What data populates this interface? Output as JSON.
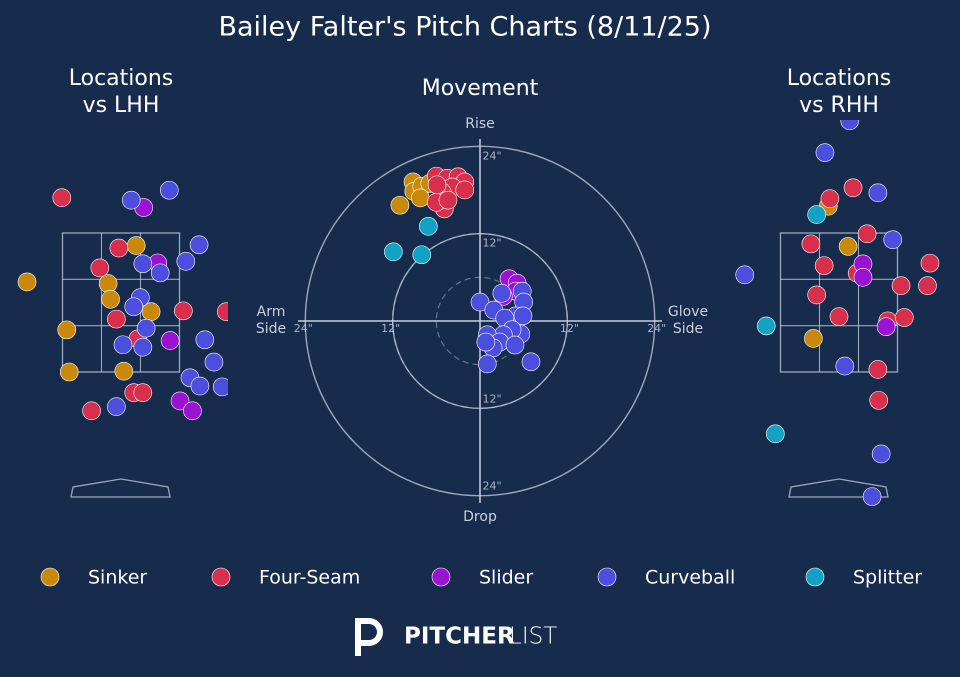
{
  "title": "Bailey Falter's Pitch Charts (8/11/25)",
  "logo": {
    "bold": "PITCHER",
    "light": "LIST"
  },
  "chart_data": [
    {
      "type": "location",
      "title": [
        "Locations",
        "vs LHH"
      ],
      "xlim": [
        -1.3,
        1.3
      ],
      "ylim": [
        0,
        4.6
      ],
      "series": [
        {
          "name": "Sinker",
          "color": "#c98a0c",
          "x": [
            -1.13,
            0.19,
            -0.15,
            -0.12,
            -0.65,
            0.37,
            -0.62,
            0.04
          ],
          "y": [
            2.7,
            3.14,
            2.68,
            2.49,
            2.12,
            2.34,
            1.61,
            1.62
          ]
        },
        {
          "name": "Four-Seam",
          "color": "#d8304c",
          "x": [
            -0.71,
            -0.02,
            -0.25,
            -0.05,
            0.76,
            1.28,
            0.21,
            0.16,
            0.27,
            -0.35
          ],
          "y": [
            3.72,
            3.11,
            2.87,
            2.25,
            2.35,
            2.34,
            2.01,
            1.36,
            1.36,
            1.14
          ]
        },
        {
          "name": "Slider",
          "color": "#9b12d2",
          "x": [
            0.28,
            0.45,
            0.6,
            0.72,
            0.87
          ],
          "y": [
            3.6,
            2.93,
            1.99,
            1.26,
            1.14
          ]
        },
        {
          "name": "Curveball",
          "color": "#4c4fdd",
          "x": [
            0.13,
            0.59,
            0.95,
            0.79,
            0.27,
            0.48,
            0.24,
            0.16,
            0.31,
            0.03,
            0.27,
            1.02,
            1.13,
            0.84,
            0.96,
            1.23,
            -0.05
          ],
          "y": [
            3.69,
            3.81,
            3.15,
            2.95,
            2.92,
            2.81,
            2.51,
            2.4,
            2.14,
            1.94,
            1.91,
            2.0,
            1.73,
            1.54,
            1.44,
            1.43,
            1.19
          ]
        }
      ]
    },
    {
      "type": "movement",
      "title": [
        "Movement"
      ],
      "xlim": [
        -25,
        25
      ],
      "ylim": [
        -25,
        25
      ],
      "xticks": [
        {
          "value": -24,
          "label": "24\""
        },
        {
          "value": -12,
          "label": "12\""
        },
        {
          "value": 12,
          "label": "12\""
        },
        {
          "value": 24,
          "label": "24\""
        }
      ],
      "yticks": [
        {
          "value": -24,
          "label": "24\""
        },
        {
          "value": -12,
          "label": "12\""
        },
        {
          "value": 12,
          "label": "12\""
        },
        {
          "value": 24,
          "label": "24\""
        }
      ],
      "annotations": {
        "top": "Rise",
        "bottom": "Drop",
        "left": [
          "Arm",
          "Side"
        ],
        "right": [
          "Glove",
          "Side"
        ]
      },
      "series": [
        {
          "name": "Sinker",
          "color": "#c98a0c",
          "x": [
            -9.2,
            -9.1,
            -11.0,
            -8.0,
            -6.9,
            -8.2
          ],
          "y": [
            19.1,
            17.8,
            15.9,
            18.5,
            18.9,
            16.9
          ]
        },
        {
          "name": "Four-Seam",
          "color": "#d8304c",
          "x": [
            -6.0,
            -4.5,
            -3.0,
            -2.1,
            -3.8,
            -5.2,
            -4.9,
            -6.0,
            -2.1,
            -4.4,
            -5.9
          ],
          "y": [
            19.9,
            19.6,
            19.8,
            19.1,
            18.4,
            17.7,
            15.4,
            16.3,
            18.0,
            16.6,
            18.7
          ]
        },
        {
          "name": "Slider",
          "color": "#9b12d2",
          "x": [
            4.0,
            5.1,
            4.9,
            3.2
          ],
          "y": [
            5.8,
            5.2,
            4.1,
            3.4
          ]
        },
        {
          "name": "Curveball",
          "color": "#4c4fdd",
          "x": [
            0,
            1.9,
            3.0,
            5.8,
            6.0,
            4.9,
            5.9,
            3.4,
            5.6,
            4.4,
            3.2,
            1.0,
            2.7,
            1.8,
            0.8,
            7.0,
            1.0,
            4.8
          ],
          "y": [
            2.6,
            1.5,
            3.8,
            4.1,
            2.6,
            0.7,
            0.7,
            0.4,
            -1.8,
            -1.2,
            -1.9,
            -1.9,
            -2.9,
            -3.7,
            -2.9,
            -5.6,
            -5.9,
            -3.3
          ]
        },
        {
          "name": "Splitter",
          "color": "#12a3c4",
          "x": [
            -11.9,
            -7.1,
            -8.0
          ],
          "y": [
            9.5,
            13.0,
            9.1
          ]
        }
      ]
    },
    {
      "type": "location",
      "title": [
        "Locations",
        "vs RHH"
      ],
      "xlim": [
        -1.3,
        1.3
      ],
      "ylim": [
        0,
        4.6
      ],
      "series": [
        {
          "name": "Sinker",
          "color": "#c98a0c",
          "x": [
            -0.13,
            0.11,
            -0.31
          ],
          "y": [
            3.57,
            3.09,
            1.99
          ]
        },
        {
          "name": "Four-Seam",
          "color": "#d8304c",
          "x": [
            -0.11,
            0.17,
            -0.34,
            0.34,
            -0.18,
            0.22,
            1.1,
            1.07,
            0.75,
            -0.27,
            0,
            0.59,
            0.79,
            0.47,
            0.48
          ],
          "y": [
            3.66,
            3.79,
            3.12,
            3.24,
            2.86,
            2.77,
            2.89,
            2.62,
            2.62,
            2.51,
            2.25,
            2.2,
            2.24,
            1.62,
            1.25
          ]
        },
        {
          "name": "Slider",
          "color": "#9b12d2",
          "x": [
            0.29,
            0.29,
            0.57
          ],
          "y": [
            2.88,
            2.72,
            2.13
          ]
        },
        {
          "name": "Curveball",
          "color": "#4c4fdd",
          "x": [
            0.13,
            -0.17,
            0.47,
            0.65,
            -1.14,
            0.07,
            0.51,
            0.4
          ],
          "y": [
            4.59,
            4.21,
            3.73,
            3.17,
            2.75,
            1.66,
            0.61,
            0.1
          ]
        },
        {
          "name": "Splitter",
          "color": "#12a3c4",
          "x": [
            -0.27,
            -0.88,
            -0.77
          ],
          "y": [
            3.47,
            2.14,
            0.85
          ]
        }
      ]
    }
  ]
}
